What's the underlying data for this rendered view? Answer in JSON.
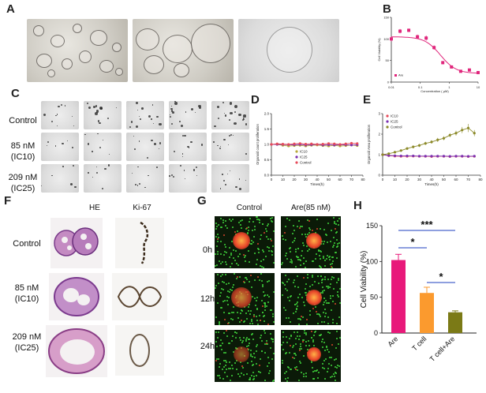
{
  "panels": {
    "a": "A",
    "b": "B",
    "c": "C",
    "d": "D",
    "e": "E",
    "f": "F",
    "g": "G",
    "h": "H"
  },
  "panel_c": {
    "rows": [
      "Control",
      "85 nM",
      "(IC10)",
      "209 nM",
      "(IC25)"
    ]
  },
  "panel_f": {
    "cols": [
      "HE",
      "Ki-67"
    ],
    "rows": [
      "Control",
      "85 nM",
      "(IC10)",
      "209 nM",
      "(IC25)"
    ]
  },
  "panel_g": {
    "cols": [
      "Control",
      "Are(85 nM)"
    ],
    "rows": [
      "0h",
      "12h",
      "24h"
    ],
    "colors": {
      "green": "#3fd23a",
      "red": "#e8452a"
    }
  },
  "chart_data": [
    {
      "id": "B",
      "type": "scatter",
      "xlabel": "Concentration ( μM)",
      "ylabel": "Cell Viability (%)",
      "xscale": "log",
      "xticks": [
        "0.01",
        "0.1",
        "1",
        "10"
      ],
      "yticks": [
        "0",
        "50",
        "100",
        "150"
      ],
      "ylim": [
        0,
        150
      ],
      "legend": [
        "Are"
      ],
      "series": [
        {
          "name": "Are",
          "color": "#e0267c",
          "x": [
            0.01,
            0.02,
            0.04,
            0.08,
            0.16,
            0.3,
            0.6,
            1.2,
            2.5,
            5,
            10
          ],
          "y": [
            100,
            118,
            120,
            105,
            102,
            80,
            45,
            35,
            25,
            28,
            22
          ],
          "err": [
            6,
            5,
            4,
            5,
            6,
            5,
            4,
            3,
            3,
            3,
            3
          ]
        }
      ]
    },
    {
      "id": "D",
      "type": "line",
      "xlabel": "Times(h)",
      "ylabel": "Organoid count proliferation",
      "xticks": [
        "0",
        "10",
        "20",
        "30",
        "40",
        "50",
        "60",
        "70",
        "80"
      ],
      "yticks": [
        "0.0",
        "0.5",
        "1.0",
        "1.5",
        "2.0"
      ],
      "xlim": [
        0,
        80
      ],
      "ylim": [
        0,
        2
      ],
      "x": [
        0,
        5,
        10,
        15,
        20,
        25,
        30,
        35,
        40,
        45,
        50,
        55,
        60,
        65,
        70,
        75
      ],
      "series": [
        {
          "name": "IC10",
          "color": "#b8a93a",
          "y": [
            1.0,
            1.0,
            0.97,
            0.95,
            0.96,
            0.97,
            0.95,
            0.97,
            0.98,
            0.96,
            0.95,
            0.97,
            0.95,
            0.96,
            0.98,
            0.96
          ]
        },
        {
          "name": "IC25",
          "color": "#7b2fb0",
          "y": [
            1.0,
            1.0,
            1.0,
            0.99,
            0.99,
            1.0,
            0.98,
            0.99,
            1.0,
            0.98,
            0.99,
            0.98,
            0.99,
            0.99,
            0.98,
            0.99
          ]
        },
        {
          "name": "Control",
          "color": "#e64b5a",
          "y": [
            1.0,
            1.02,
            1.01,
            1.0,
            1.02,
            1.03,
            1.01,
            1.02,
            1.0,
            1.01,
            1.03,
            1.02,
            1.0,
            1.02,
            1.04,
            1.03
          ]
        }
      ]
    },
    {
      "id": "E",
      "type": "line",
      "xlabel": "Times(h)",
      "ylabel": "Organoid Area proliferation",
      "xticks": [
        "0",
        "10",
        "20",
        "30",
        "40",
        "50",
        "60",
        "70",
        "80"
      ],
      "yticks": [
        "0",
        "1",
        "2",
        "3"
      ],
      "xlim": [
        0,
        80
      ],
      "ylim": [
        0,
        3
      ],
      "x": [
        0,
        5,
        10,
        15,
        20,
        25,
        30,
        35,
        40,
        45,
        50,
        55,
        60,
        65,
        70,
        75
      ],
      "series": [
        {
          "name": "IC10",
          "color": "#e64b5a",
          "y": [
            1.0,
            0.95,
            0.93,
            0.92,
            0.92,
            0.93,
            0.92,
            0.92,
            0.91,
            0.92,
            0.92,
            0.91,
            0.92,
            0.92,
            0.91,
            0.92
          ]
        },
        {
          "name": "IC25",
          "color": "#7b2fb0",
          "y": [
            1.0,
            0.96,
            0.95,
            0.94,
            0.94,
            0.94,
            0.93,
            0.93,
            0.93,
            0.93,
            0.93,
            0.92,
            0.93,
            0.93,
            0.92,
            0.93
          ]
        },
        {
          "name": "Control",
          "color": "#8c8a2a",
          "y": [
            1.0,
            1.05,
            1.12,
            1.2,
            1.3,
            1.38,
            1.45,
            1.55,
            1.62,
            1.72,
            1.8,
            1.95,
            2.05,
            2.2,
            2.3,
            2.05
          ],
          "err": [
            0.05,
            0.05,
            0.06,
            0.06,
            0.07,
            0.07,
            0.08,
            0.08,
            0.08,
            0.1,
            0.1,
            0.1,
            0.12,
            0.15,
            0.2,
            0.15
          ]
        }
      ]
    },
    {
      "id": "H",
      "type": "bar",
      "ylabel": "Cell Viability (%)",
      "categories": [
        "Are",
        "T cell",
        "T cell+Are"
      ],
      "values": [
        102,
        56,
        29
      ],
      "errors": [
        8,
        8,
        2
      ],
      "colors": [
        "#e8197a",
        "#fb9a2e",
        "#7b7a16"
      ],
      "yticks": [
        "0",
        "50",
        "100",
        "150"
      ],
      "ylim": [
        0,
        150
      ],
      "annotations": [
        "*",
        "***",
        "*"
      ]
    }
  ]
}
